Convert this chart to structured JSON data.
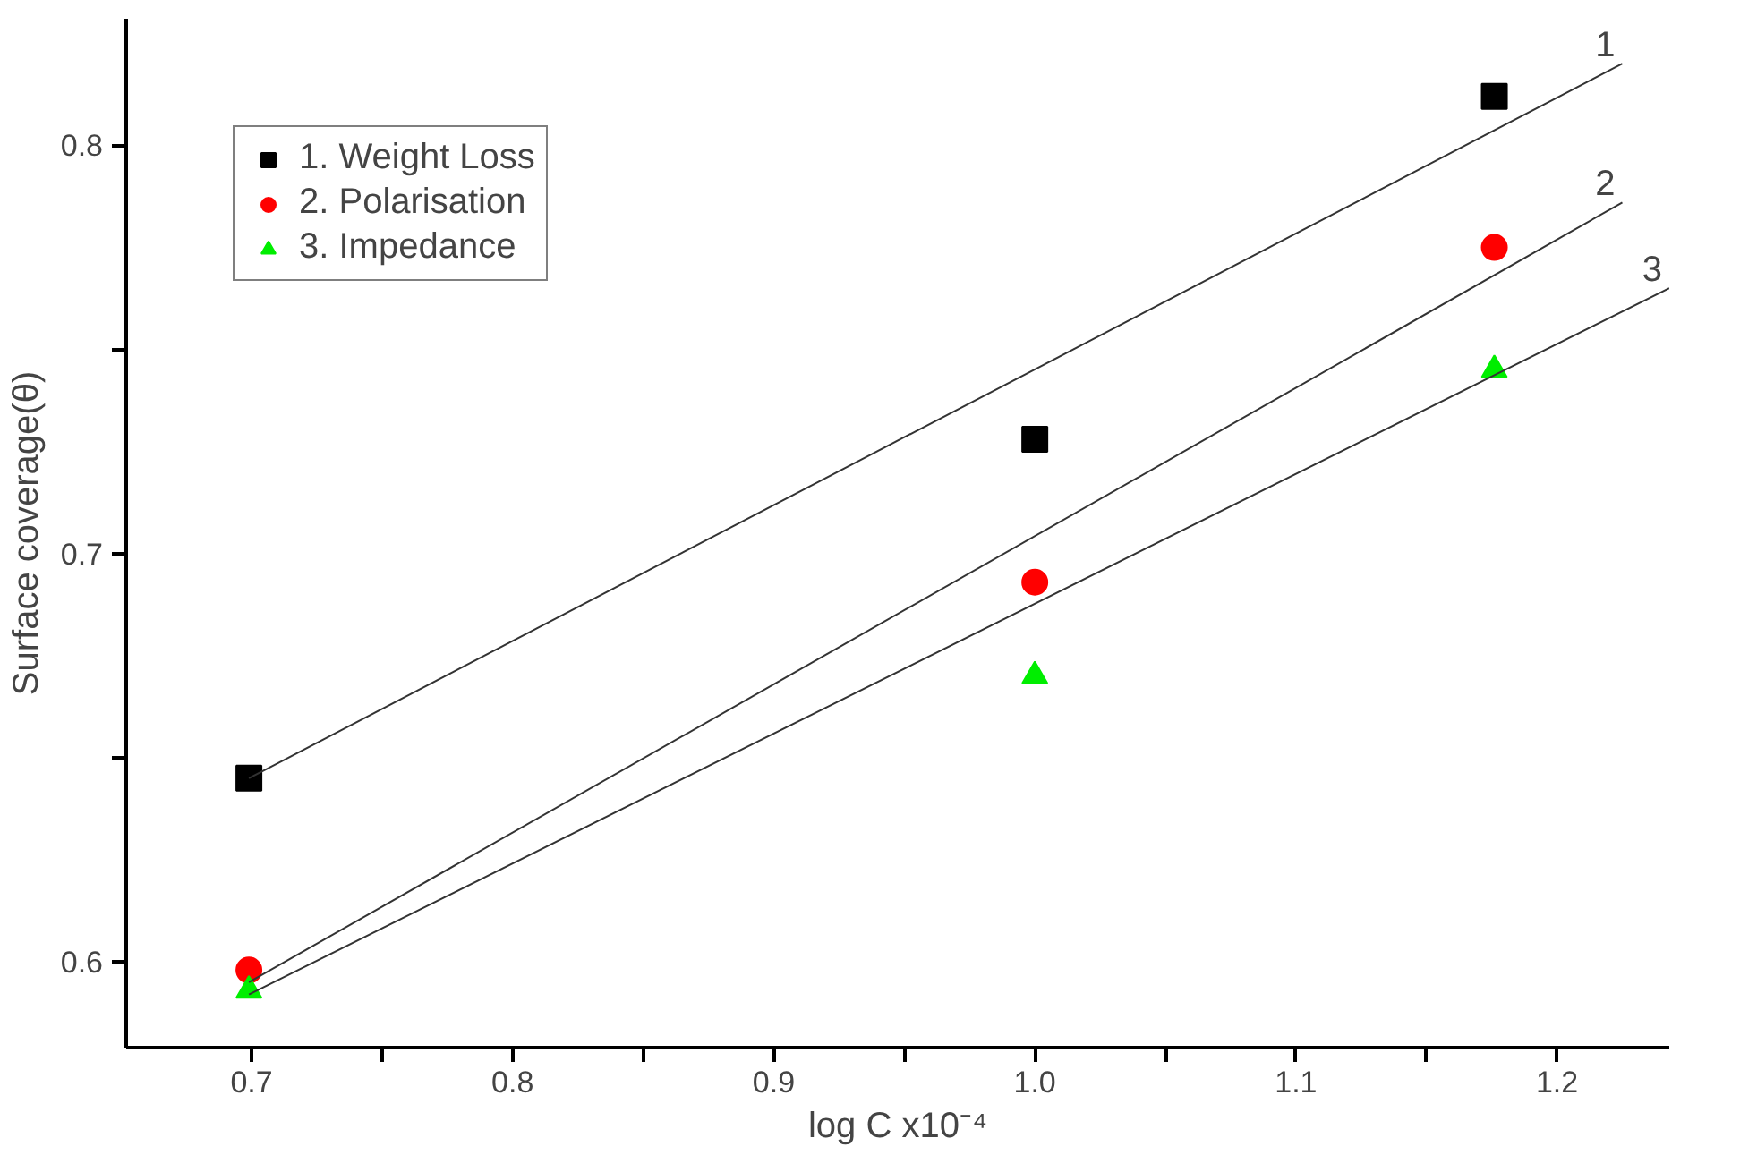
{
  "chart_data": {
    "type": "scatter",
    "xlabel": "log C x10⁻⁴",
    "ylabel": "Surface coverage(θ)",
    "xlim": [
      0.652,
      1.243
    ],
    "ylim": [
      0.579,
      0.831
    ],
    "xticks": [
      0.7,
      {
        "value": 0.75,
        "label": null
      },
      0.8,
      {
        "value": 0.85,
        "label": null
      },
      0.9,
      {
        "value": 0.95,
        "label": null
      },
      "1.0",
      {
        "value": 1.05,
        "label": null
      },
      1.1,
      {
        "value": 1.15,
        "label": null
      },
      1.2
    ],
    "yticks": [
      {
        "value": 0.6,
        "label": "0.6"
      },
      {
        "value": 0.65,
        "label": null
      },
      {
        "value": 0.7,
        "label": "0.7"
      },
      {
        "value": 0.75,
        "label": null
      },
      {
        "value": 0.8,
        "label": "0.8"
      }
    ],
    "grid": false,
    "legend": "top left",
    "series": [
      {
        "name": "1. Weight Loss",
        "color": "#000000",
        "marker": "square",
        "x": [
          0.699,
          1.0,
          1.176
        ],
        "values": [
          0.645,
          0.728,
          0.812
        ]
      },
      {
        "name": "2. Polarisation",
        "color": "#ff0000",
        "marker": "circle",
        "x": [
          0.699,
          1.0,
          1.176
        ],
        "values": [
          0.598,
          0.693,
          0.775
        ]
      },
      {
        "name": "3. Impedance",
        "color": "#00ee00",
        "marker": "triangle",
        "x": [
          0.699,
          1.0,
          1.176
        ],
        "values": [
          0.593,
          0.67,
          0.745
        ]
      },
      {
        "name": "1",
        "type": "line",
        "color": "#333333",
        "x": [
          0.699,
          1.225
        ],
        "values": [
          0.645,
          0.82
        ]
      },
      {
        "name": "2",
        "type": "line",
        "color": "#333333",
        "x": [
          0.699,
          1.225
        ],
        "values": [
          0.595,
          0.786
        ]
      },
      {
        "name": "3",
        "type": "line",
        "color": "#333333",
        "x": [
          0.699,
          1.243
        ],
        "values": [
          0.592,
          0.765
        ]
      }
    ]
  }
}
